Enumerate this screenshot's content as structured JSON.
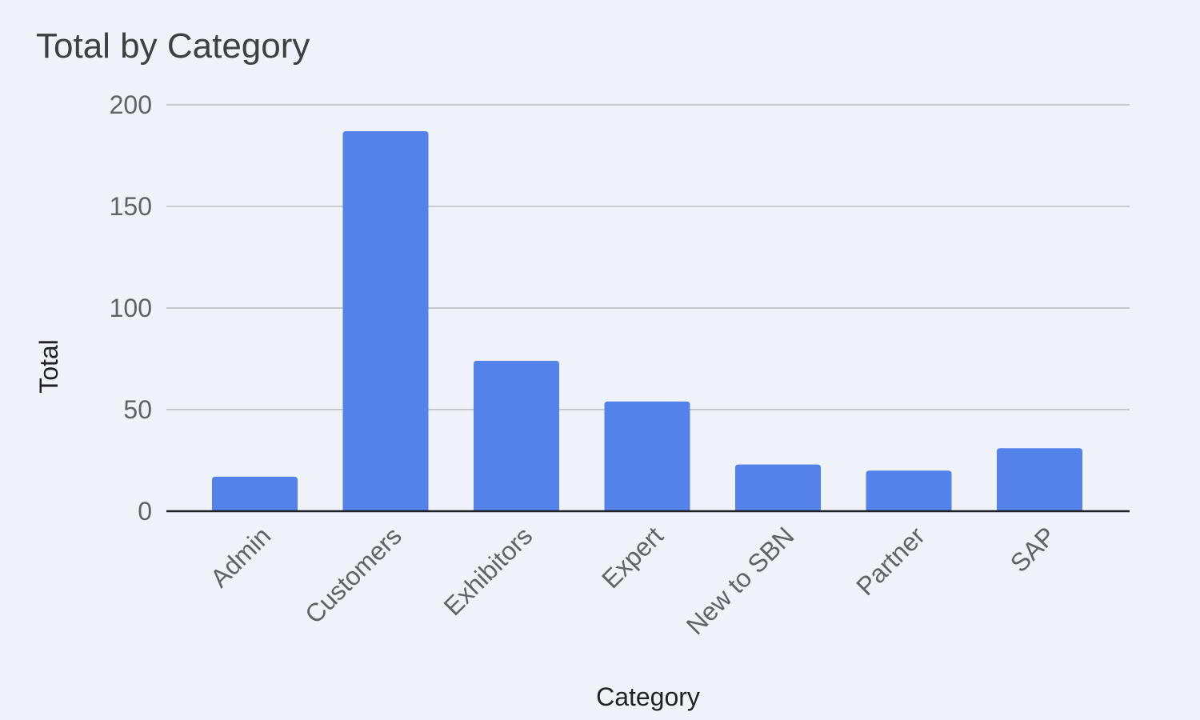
{
  "chart_data": {
    "type": "bar",
    "title": "Total by Category",
    "xlabel": "Category",
    "ylabel": "Total",
    "ylim": [
      0,
      200
    ],
    "yticks": [
      0,
      50,
      100,
      150,
      200
    ],
    "grid": true,
    "legend": "none",
    "categories": [
      "Admin",
      "Customers",
      "Exhibitors",
      "Expert",
      "New to SBN",
      "Partner",
      "SAP"
    ],
    "values": [
      17,
      187,
      74,
      54,
      23,
      20,
      31
    ],
    "bar_color": "#5383ea",
    "grid_color": "#c6c9ce",
    "baseline_color": "#202124",
    "background_color": "#eff3f9"
  }
}
